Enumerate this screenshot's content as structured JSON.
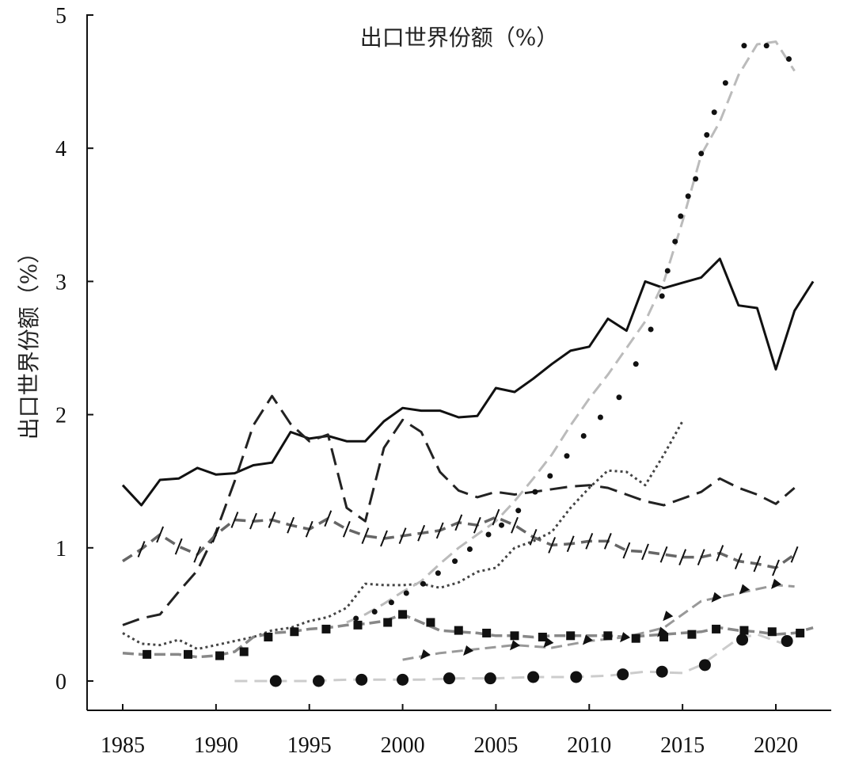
{
  "chart_data": {
    "type": "line",
    "title": "出口世界份额（%）",
    "ylabel": "出口世界份额（%）",
    "xlabel": "",
    "xlim": [
      1985,
      2024
    ],
    "ylim": [
      0,
      5
    ],
    "x_ticks": [
      1985,
      1990,
      1995,
      2000,
      2005,
      2010,
      2015,
      2020
    ],
    "y_ticks": [
      0,
      1,
      2,
      3,
      4,
      5
    ],
    "grid": false,
    "series": [
      {
        "style": "solid",
        "color": "#111111",
        "x": [
          1985,
          1986,
          1987,
          1988,
          1989,
          1990,
          1991,
          1992,
          1993,
          1994,
          1995,
          1996,
          1997,
          1998,
          1999,
          2000,
          2001,
          2002,
          2003,
          2004,
          2005,
          2006,
          2007,
          2008,
          2009,
          2010,
          2011,
          2012,
          2013,
          2014,
          2015,
          2016,
          2017,
          2018,
          2019,
          2020,
          2021,
          2022
        ],
        "y": [
          1.47,
          1.32,
          1.51,
          1.52,
          1.6,
          1.55,
          1.56,
          1.62,
          1.64,
          1.87,
          1.82,
          1.84,
          1.8,
          1.8,
          1.95,
          2.05,
          2.03,
          2.03,
          1.98,
          1.99,
          2.2,
          2.17,
          2.27,
          2.38,
          2.48,
          2.51,
          2.72,
          2.63,
          3.0,
          2.95,
          2.99,
          3.03,
          3.17,
          2.82,
          2.8,
          2.34,
          2.78,
          3.0
        ]
      },
      {
        "style": "long-dash",
        "color": "#222222",
        "x": [
          1985,
          1986,
          1987,
          1988,
          1989,
          1990,
          1991,
          1992,
          1993,
          1994,
          1995,
          1996,
          1997,
          1998,
          1999,
          2000,
          2001,
          2002,
          2003,
          2004,
          2005,
          2006,
          2007,
          2008,
          2009,
          2010,
          2011,
          2012,
          2013,
          2014,
          2015,
          2016,
          2017,
          2018,
          2019,
          2020,
          2021
        ],
        "y": [
          0.42,
          0.47,
          0.5,
          0.67,
          0.83,
          1.12,
          1.5,
          1.92,
          2.14,
          1.93,
          1.8,
          1.85,
          1.3,
          1.2,
          1.75,
          1.96,
          1.87,
          1.57,
          1.43,
          1.38,
          1.42,
          1.4,
          1.42,
          1.44,
          1.46,
          1.47,
          1.45,
          1.4,
          1.35,
          1.32,
          1.37,
          1.42,
          1.52,
          1.45,
          1.4,
          1.33,
          1.45
        ]
      },
      {
        "style": "dash-with-slashes",
        "color": "#666666",
        "x": [
          1985,
          1986,
          1987,
          1988,
          1989,
          1990,
          1991,
          1992,
          1993,
          1994,
          1995,
          1996,
          1997,
          1998,
          1999,
          2000,
          2001,
          2002,
          2003,
          2004,
          2005,
          2006,
          2007,
          2008,
          2009,
          2010,
          2011,
          2012,
          2013,
          2014,
          2015,
          2016,
          2017,
          2018,
          2019,
          2020,
          2021
        ],
        "y": [
          0.9,
          0.99,
          1.1,
          1.01,
          0.95,
          1.1,
          1.21,
          1.2,
          1.21,
          1.17,
          1.14,
          1.22,
          1.14,
          1.09,
          1.07,
          1.09,
          1.11,
          1.13,
          1.19,
          1.17,
          1.23,
          1.17,
          1.08,
          1.02,
          1.03,
          1.05,
          1.05,
          0.98,
          0.97,
          0.95,
          0.93,
          0.93,
          0.96,
          0.9,
          0.88,
          0.85,
          0.95
        ]
      },
      {
        "style": "fine-dotted",
        "color": "#444444",
        "x": [
          1985,
          1986,
          1987,
          1988,
          1989,
          1990,
          1991,
          1992,
          1993,
          1994,
          1995,
          1996,
          1997,
          1998,
          1999,
          2000,
          2001,
          2002,
          2003,
          2004,
          2005,
          2006,
          2007,
          2008,
          2009,
          2010,
          2011,
          2012,
          2013,
          2014,
          2015
        ],
        "y": [
          0.36,
          0.28,
          0.27,
          0.31,
          0.24,
          0.27,
          0.3,
          0.33,
          0.38,
          0.4,
          0.45,
          0.48,
          0.55,
          0.73,
          0.72,
          0.72,
          0.73,
          0.7,
          0.74,
          0.82,
          0.85,
          1.0,
          1.05,
          1.12,
          1.3,
          1.45,
          1.58,
          1.57,
          1.47,
          1.7,
          1.95
        ]
      },
      {
        "style": "dash-square-markers",
        "color": "#888888",
        "x": [
          1985,
          1986,
          1987,
          1988,
          1989,
          1990,
          1991,
          1992,
          1993,
          1994,
          1995,
          1996,
          1997,
          1998,
          1999,
          2000,
          2001,
          2002,
          2003,
          2004,
          2005,
          2006,
          2007,
          2008,
          2009,
          2010,
          2011,
          2012,
          2013,
          2014,
          2015,
          2016,
          2017,
          2018,
          2019,
          2020,
          2021,
          2022
        ],
        "y": [
          0.21,
          0.2,
          0.2,
          0.2,
          0.18,
          0.19,
          0.22,
          0.33,
          0.36,
          0.37,
          0.39,
          0.4,
          0.42,
          0.43,
          0.45,
          0.5,
          0.44,
          0.38,
          0.37,
          0.36,
          0.34,
          0.34,
          0.33,
          0.34,
          0.34,
          0.34,
          0.34,
          0.33,
          0.34,
          0.35,
          0.36,
          0.37,
          0.4,
          0.38,
          0.37,
          0.35,
          0.36,
          0.4
        ],
        "markers_x": [
          1986.3,
          1988.5,
          1990.2,
          1991.5,
          1992.8,
          1994.2,
          1995.9,
          1997.6,
          1999.2,
          2000.0,
          2001.5,
          2003.0,
          2004.5,
          2006.0,
          2007.5,
          2009.0,
          2011.0,
          2012.5,
          2014.0,
          2015.5,
          2016.8,
          2018.3,
          2019.8,
          2021.3
        ],
        "markers_y": [
          0.2,
          0.2,
          0.19,
          0.22,
          0.33,
          0.37,
          0.39,
          0.42,
          0.44,
          0.5,
          0.44,
          0.38,
          0.36,
          0.34,
          0.33,
          0.34,
          0.34,
          0.32,
          0.33,
          0.35,
          0.39,
          0.38,
          0.37,
          0.36
        ]
      },
      {
        "style": "big-dotted",
        "color": "#bbbbbb",
        "x": [
          1997,
          1998,
          1999,
          2000,
          2001,
          2002,
          2003,
          2004,
          2005,
          2006,
          2007,
          2008,
          2009,
          2010,
          2011,
          2012,
          2013,
          2014,
          2015,
          2016,
          2017,
          2018,
          2019,
          2020,
          2021
        ],
        "y": [
          0.44,
          0.5,
          0.58,
          0.67,
          0.75,
          0.88,
          1.0,
          1.1,
          1.2,
          1.35,
          1.52,
          1.7,
          1.92,
          2.12,
          2.3,
          2.5,
          2.7,
          3.0,
          3.45,
          3.95,
          4.2,
          4.55,
          4.78,
          4.8,
          4.58
        ],
        "markers_x": [
          1997.5,
          1998.5,
          1999.4,
          2000.2,
          2001.1,
          2001.9,
          2002.8,
          2003.6,
          2004.6,
          2005.3,
          2006.2,
          2007.1,
          2007.9,
          2008.8,
          2009.7,
          2010.6,
          2011.6,
          2012.5,
          2013.3,
          2013.9,
          2014.2,
          2014.6,
          2014.9,
          2015.3,
          2015.7,
          2016.0,
          2016.3,
          2016.7,
          2017.3,
          2018.3,
          2019.5,
          2020.7
        ],
        "markers_y": [
          0.47,
          0.52,
          0.59,
          0.66,
          0.73,
          0.81,
          0.9,
          0.99,
          1.1,
          1.17,
          1.28,
          1.42,
          1.54,
          1.69,
          1.84,
          1.98,
          2.13,
          2.38,
          2.64,
          2.89,
          3.08,
          3.3,
          3.49,
          3.64,
          3.77,
          3.96,
          4.1,
          4.27,
          4.49,
          4.77,
          4.77,
          4.67
        ]
      },
      {
        "style": "dash-triangle-markers",
        "color": "#999999",
        "x": [
          2000,
          2002,
          2004,
          2006,
          2008,
          2010,
          2012,
          2014,
          2016,
          2018,
          2020,
          2021
        ],
        "y": [
          0.16,
          0.21,
          0.24,
          0.27,
          0.25,
          0.3,
          0.33,
          0.4,
          0.6,
          0.66,
          0.72,
          0.71
        ],
        "markers_x": [
          2001.2,
          2003.5,
          2006.0,
          2007.8,
          2009.9,
          2011.9,
          2013.9,
          2014.2,
          2016.8,
          2018.3,
          2020.0
        ],
        "markers_y": [
          0.19,
          0.22,
          0.26,
          0.28,
          0.3,
          0.32,
          0.36,
          0.48,
          0.62,
          0.68,
          0.72
        ]
      },
      {
        "style": "dash-circle-markers",
        "color": "#cccccc",
        "x": [
          1991,
          1993,
          1995,
          1997,
          1999,
          2001,
          2003,
          2005,
          2007,
          2009,
          2011,
          2013,
          2015,
          2016,
          2017,
          2018,
          2019,
          2020,
          2021
        ],
        "y": [
          0.0,
          0.0,
          0.0,
          0.01,
          0.01,
          0.01,
          0.02,
          0.02,
          0.03,
          0.03,
          0.04,
          0.07,
          0.06,
          0.12,
          0.22,
          0.32,
          0.35,
          0.3,
          0.25
        ],
        "markers_x": [
          1993.2,
          1995.5,
          1997.8,
          2000.0,
          2002.5,
          2004.7,
          2007.0,
          2009.3,
          2011.8,
          2013.9,
          2016.2,
          2018.2,
          2020.6
        ],
        "markers_y": [
          0.0,
          0.0,
          0.01,
          0.01,
          0.02,
          0.02,
          0.03,
          0.03,
          0.05,
          0.07,
          0.12,
          0.31,
          0.3
        ]
      }
    ]
  }
}
